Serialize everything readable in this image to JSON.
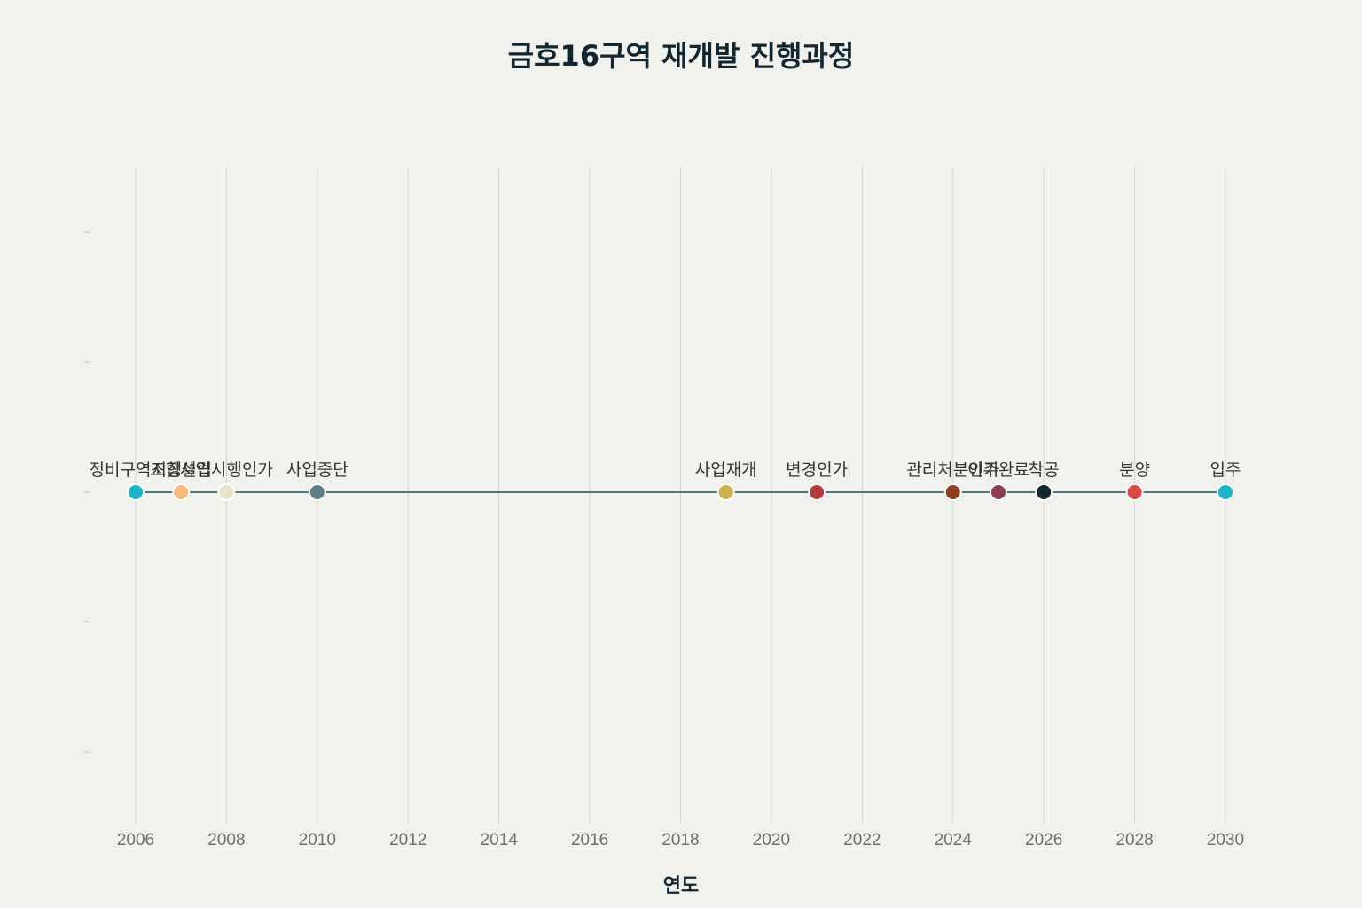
{
  "chart_data": {
    "type": "line",
    "title": "금호16구역 재개발 진행과정",
    "xlabel": "연도",
    "ylabel": "",
    "xlim": [
      2005,
      2031
    ],
    "xticks": [
      2006,
      2008,
      2010,
      2012,
      2014,
      2016,
      2018,
      2020,
      2022,
      2024,
      2026,
      2028,
      2030
    ],
    "grid": true,
    "legend": "none",
    "series": [
      {
        "points": [
          {
            "x": 2006,
            "y": 0,
            "label": "정비구역지정",
            "color": "#1fb3c9"
          },
          {
            "x": 2007,
            "y": 0,
            "label": "조합설립",
            "color": "#f9bb7c"
          },
          {
            "x": 2008,
            "y": 0,
            "label": "사업시행인가",
            "color": "#e8e5cf"
          },
          {
            "x": 2010,
            "y": 0,
            "label": "사업중단",
            "color": "#5c7d87"
          },
          {
            "x": 2019,
            "y": 0,
            "label": "사업재개",
            "color": "#cbb14a"
          },
          {
            "x": 2021,
            "y": 0,
            "label": "변경인가",
            "color": "#b23a3d"
          },
          {
            "x": 2024,
            "y": 0,
            "label": "관리처분인가",
            "color": "#8e3e22"
          },
          {
            "x": 2025,
            "y": 0,
            "label": "이주완료",
            "color": "#8c3d50"
          },
          {
            "x": 2026,
            "y": 0,
            "label": "착공",
            "color": "#12262f"
          },
          {
            "x": 2028,
            "y": 0,
            "label": "분양",
            "color": "#dd4448"
          },
          {
            "x": 2030,
            "y": 0,
            "label": "입주",
            "color": "#1fb3c9"
          }
        ]
      }
    ]
  }
}
